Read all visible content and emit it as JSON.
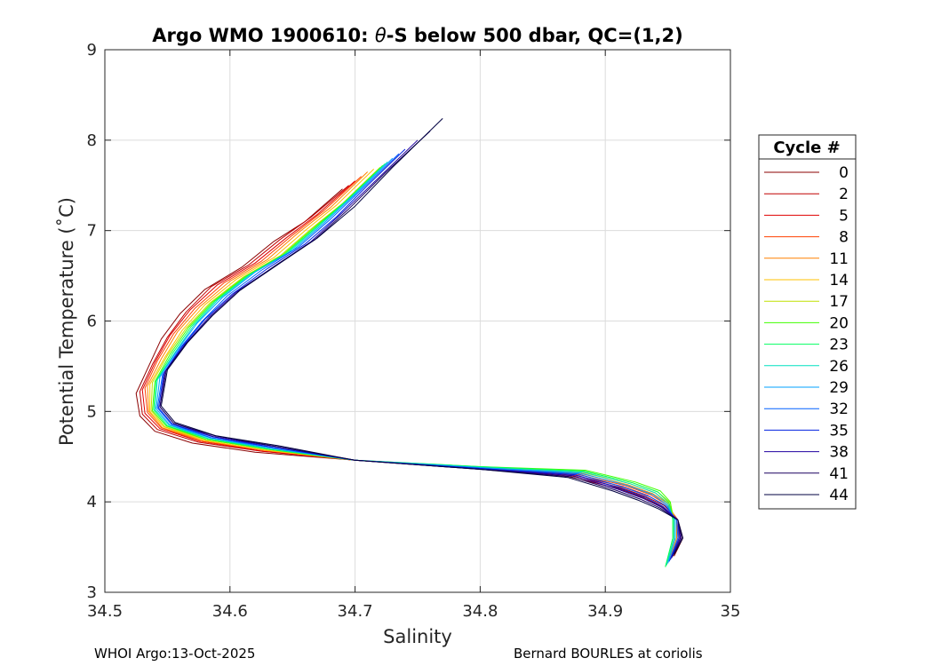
{
  "chart_data": {
    "type": "line",
    "title": "Argo WMO 1900610: θ-S below 500 dbar,  QC=(1,2)",
    "title_parts": {
      "pre": "Argo WMO 1900610: ",
      "theta": "θ",
      "post": "-S below 500 dbar,  QC=(1,2)"
    },
    "xlabel": "Salinity",
    "ylabel": "Potential Temperature (˚C)",
    "xlim": [
      34.5,
      35
    ],
    "ylim": [
      3,
      9
    ],
    "xticks": [
      34.5,
      34.6,
      34.7,
      34.8,
      34.9,
      35
    ],
    "xtick_labels": [
      "34.5",
      "34.6",
      "34.7",
      "34.8",
      "34.9",
      "35"
    ],
    "yticks": [
      3,
      4,
      5,
      6,
      7,
      8,
      9
    ],
    "ytick_labels": [
      "3",
      "4",
      "5",
      "6",
      "7",
      "8",
      "9"
    ],
    "grid": true,
    "legend_title": "Cycle #",
    "legend_position": "right",
    "series": [
      {
        "name": "0",
        "color": "#8b0000",
        "x": [
          34.69,
          34.66,
          34.635,
          34.61,
          34.58,
          34.56,
          34.545,
          34.535,
          34.525,
          34.528,
          34.54,
          34.57,
          34.62,
          34.7,
          34.8,
          34.87,
          34.91,
          34.93,
          34.945,
          34.958,
          34.962,
          34.955
        ],
        "y": [
          7.46,
          7.1,
          6.88,
          6.6,
          6.35,
          6.08,
          5.8,
          5.5,
          5.2,
          4.95,
          4.78,
          4.65,
          4.55,
          4.46,
          4.37,
          4.28,
          4.15,
          4.05,
          3.95,
          3.8,
          3.6,
          3.4
        ]
      },
      {
        "name": "2",
        "color": "#c00000",
        "x": [
          34.695,
          34.665,
          34.64,
          34.615,
          34.585,
          34.565,
          34.55,
          34.538,
          34.528,
          34.53,
          34.542,
          34.575,
          34.625,
          34.7,
          34.8,
          34.872,
          34.912,
          34.932,
          34.947,
          34.958,
          34.96,
          34.954
        ],
        "y": [
          7.5,
          7.15,
          6.9,
          6.62,
          6.38,
          6.1,
          5.82,
          5.52,
          5.22,
          4.97,
          4.8,
          4.66,
          4.56,
          4.46,
          4.37,
          4.29,
          4.16,
          4.06,
          3.96,
          3.8,
          3.6,
          3.4
        ]
      },
      {
        "name": "5",
        "color": "#e00000",
        "x": [
          34.7,
          34.67,
          34.645,
          34.62,
          34.59,
          34.568,
          34.552,
          34.54,
          34.53,
          34.532,
          34.544,
          34.576,
          34.626,
          34.7,
          34.8,
          34.874,
          34.914,
          34.934,
          34.948,
          34.958,
          34.959,
          34.953
        ],
        "y": [
          7.55,
          7.18,
          6.92,
          6.64,
          6.4,
          6.12,
          5.84,
          5.54,
          5.24,
          4.98,
          4.81,
          4.67,
          4.56,
          4.46,
          4.37,
          4.3,
          4.17,
          4.07,
          3.96,
          3.8,
          3.6,
          3.38
        ]
      },
      {
        "name": "8",
        "color": "#ff4000",
        "x": [
          34.705,
          34.675,
          34.65,
          34.625,
          34.595,
          34.572,
          34.555,
          34.542,
          34.532,
          34.534,
          34.545,
          34.577,
          34.627,
          34.7,
          34.8,
          34.876,
          34.916,
          34.936,
          34.949,
          34.958,
          34.958,
          34.952
        ],
        "y": [
          7.6,
          7.22,
          6.95,
          6.66,
          6.42,
          6.14,
          5.86,
          5.56,
          5.26,
          4.99,
          4.82,
          4.67,
          4.57,
          4.46,
          4.37,
          4.31,
          4.18,
          4.08,
          3.97,
          3.8,
          3.6,
          3.36
        ]
      },
      {
        "name": "11",
        "color": "#ff8000",
        "x": [
          34.71,
          34.68,
          34.655,
          34.63,
          34.6,
          34.576,
          34.558,
          34.545,
          34.534,
          34.535,
          34.546,
          34.578,
          34.628,
          34.7,
          34.8,
          34.878,
          34.918,
          34.938,
          34.95,
          34.957,
          34.957,
          34.951
        ],
        "y": [
          7.65,
          7.25,
          6.98,
          6.68,
          6.44,
          6.16,
          5.88,
          5.58,
          5.28,
          5.0,
          4.82,
          4.68,
          4.57,
          4.46,
          4.37,
          4.32,
          4.19,
          4.09,
          3.98,
          3.8,
          3.6,
          3.34
        ]
      },
      {
        "name": "14",
        "color": "#ffc000",
        "x": [
          34.715,
          34.685,
          34.66,
          34.635,
          34.605,
          34.58,
          34.562,
          34.548,
          34.536,
          34.536,
          34.547,
          34.579,
          34.629,
          34.7,
          34.8,
          34.88,
          34.92,
          34.94,
          34.951,
          34.956,
          34.956,
          34.95
        ],
        "y": [
          7.68,
          7.28,
          7.0,
          6.7,
          6.46,
          6.18,
          5.9,
          5.6,
          5.3,
          5.0,
          4.83,
          4.68,
          4.57,
          4.46,
          4.37,
          4.33,
          4.2,
          4.1,
          3.98,
          3.8,
          3.6,
          3.32
        ]
      },
      {
        "name": "17",
        "color": "#c0e000",
        "x": [
          34.72,
          34.69,
          34.665,
          34.64,
          34.61,
          34.584,
          34.565,
          34.55,
          34.538,
          34.537,
          34.548,
          34.58,
          34.63,
          34.7,
          34.8,
          34.882,
          34.922,
          34.942,
          34.952,
          34.955,
          34.955,
          34.949
        ],
        "y": [
          7.7,
          7.3,
          7.02,
          6.72,
          6.48,
          6.2,
          5.92,
          5.62,
          5.32,
          5.01,
          4.83,
          4.69,
          4.58,
          4.46,
          4.38,
          4.34,
          4.21,
          4.11,
          3.99,
          3.8,
          3.6,
          3.3
        ]
      },
      {
        "name": "20",
        "color": "#40ff00",
        "x": [
          34.722,
          34.692,
          34.667,
          34.642,
          34.612,
          34.586,
          34.567,
          34.552,
          34.54,
          34.538,
          34.549,
          34.581,
          34.631,
          34.7,
          34.8,
          34.884,
          34.924,
          34.944,
          34.952,
          34.954,
          34.954,
          34.948
        ],
        "y": [
          7.72,
          7.32,
          7.03,
          6.73,
          6.49,
          6.21,
          5.93,
          5.63,
          5.33,
          5.01,
          4.84,
          4.69,
          4.58,
          4.46,
          4.39,
          4.35,
          4.22,
          4.12,
          4.0,
          3.8,
          3.6,
          3.28
        ]
      },
      {
        "name": "23",
        "color": "#00ff60",
        "x": [
          34.724,
          34.694,
          34.669,
          34.644,
          34.614,
          34.588,
          34.569,
          34.554,
          34.541,
          34.539,
          34.55,
          34.582,
          34.632,
          34.7,
          34.8,
          34.883,
          34.922,
          34.942,
          34.951,
          34.954,
          34.954,
          34.948
        ],
        "y": [
          7.74,
          7.34,
          7.04,
          6.74,
          6.5,
          6.22,
          5.94,
          5.64,
          5.34,
          5.02,
          4.84,
          4.7,
          4.58,
          4.46,
          4.39,
          4.34,
          4.21,
          4.11,
          3.99,
          3.8,
          3.6,
          3.28
        ]
      },
      {
        "name": "26",
        "color": "#00e0c0",
        "x": [
          34.726,
          34.696,
          34.671,
          34.646,
          34.616,
          34.59,
          34.571,
          34.556,
          34.542,
          34.54,
          34.551,
          34.583,
          34.633,
          34.7,
          34.8,
          34.882,
          34.92,
          34.94,
          34.95,
          34.955,
          34.955,
          34.949
        ],
        "y": [
          7.76,
          7.36,
          7.05,
          6.75,
          6.51,
          6.23,
          5.95,
          5.65,
          5.35,
          5.02,
          4.85,
          4.7,
          4.59,
          4.46,
          4.38,
          4.33,
          4.2,
          4.1,
          3.98,
          3.8,
          3.6,
          3.3
        ]
      },
      {
        "name": "29",
        "color": "#00a0ff",
        "x": [
          34.73,
          34.7,
          34.675,
          34.65,
          34.62,
          34.594,
          34.574,
          34.558,
          34.544,
          34.541,
          34.552,
          34.584,
          34.634,
          34.7,
          34.8,
          34.88,
          34.918,
          34.938,
          34.949,
          34.956,
          34.956,
          34.95
        ],
        "y": [
          7.8,
          7.4,
          7.08,
          6.78,
          6.54,
          6.26,
          5.98,
          5.68,
          5.38,
          5.03,
          4.85,
          4.71,
          4.59,
          4.46,
          4.38,
          4.32,
          4.18,
          4.08,
          3.97,
          3.8,
          3.6,
          3.32
        ]
      },
      {
        "name": "32",
        "color": "#0060ff",
        "x": [
          34.735,
          34.705,
          34.68,
          34.655,
          34.625,
          34.598,
          34.578,
          34.56,
          34.546,
          34.542,
          34.553,
          34.585,
          34.635,
          34.7,
          34.8,
          34.878,
          34.915,
          34.935,
          34.948,
          34.957,
          34.958,
          34.951
        ],
        "y": [
          7.85,
          7.45,
          7.12,
          6.82,
          6.56,
          6.28,
          6.0,
          5.7,
          5.4,
          5.04,
          4.86,
          4.71,
          4.6,
          4.46,
          4.37,
          4.31,
          4.16,
          4.06,
          3.96,
          3.8,
          3.6,
          3.34
        ]
      },
      {
        "name": "35",
        "color": "#0020e0",
        "x": [
          34.74,
          34.71,
          34.685,
          34.66,
          34.63,
          34.602,
          34.58,
          34.562,
          34.547,
          34.543,
          34.554,
          34.586,
          34.636,
          34.7,
          34.8,
          34.876,
          34.912,
          34.932,
          34.946,
          34.958,
          34.959,
          34.952
        ],
        "y": [
          7.9,
          7.5,
          7.15,
          6.85,
          6.58,
          6.3,
          6.02,
          5.72,
          5.42,
          5.04,
          4.86,
          4.72,
          4.6,
          4.46,
          4.37,
          4.3,
          4.15,
          4.05,
          3.95,
          3.8,
          3.6,
          3.36
        ]
      },
      {
        "name": "38",
        "color": "#2000a0",
        "x": [
          34.75,
          34.72,
          34.69,
          34.665,
          34.635,
          34.605,
          34.583,
          34.564,
          34.548,
          34.544,
          34.555,
          34.587,
          34.637,
          34.7,
          34.8,
          34.874,
          34.91,
          34.93,
          34.945,
          34.958,
          34.96,
          34.953
        ],
        "y": [
          8.0,
          7.6,
          7.2,
          6.88,
          6.6,
          6.32,
          6.04,
          5.74,
          5.44,
          5.05,
          4.87,
          4.72,
          4.61,
          4.46,
          4.36,
          4.29,
          4.14,
          4.04,
          3.94,
          3.8,
          3.6,
          3.38
        ]
      },
      {
        "name": "41",
        "color": "#1a0060",
        "x": [
          34.76,
          34.725,
          34.695,
          34.668,
          34.637,
          34.607,
          34.585,
          34.565,
          34.549,
          34.544,
          34.555,
          34.588,
          34.638,
          34.7,
          34.8,
          34.872,
          34.908,
          34.928,
          34.944,
          34.958,
          34.961,
          34.954
        ],
        "y": [
          8.1,
          7.65,
          7.24,
          6.9,
          6.62,
          6.33,
          6.05,
          5.75,
          5.45,
          5.05,
          4.87,
          4.73,
          4.61,
          4.46,
          4.36,
          4.28,
          4.13,
          4.03,
          3.93,
          3.8,
          3.6,
          3.4
        ]
      },
      {
        "name": "44",
        "color": "#000040",
        "x": [
          34.77,
          34.73,
          34.7,
          34.67,
          34.64,
          34.608,
          34.586,
          34.566,
          34.55,
          34.545,
          34.556,
          34.589,
          34.639,
          34.7,
          34.8,
          34.87,
          34.906,
          34.926,
          34.943,
          34.958,
          34.962,
          34.955
        ],
        "y": [
          8.24,
          7.7,
          7.27,
          6.92,
          6.64,
          6.34,
          6.06,
          5.76,
          5.46,
          5.06,
          4.88,
          4.73,
          4.62,
          4.46,
          4.36,
          4.27,
          4.12,
          4.02,
          3.92,
          3.8,
          3.6,
          3.42
        ]
      }
    ]
  },
  "footer": {
    "left": "WHOI Argo:13-Oct-2025",
    "right": "Bernard BOURLES at coriolis"
  }
}
